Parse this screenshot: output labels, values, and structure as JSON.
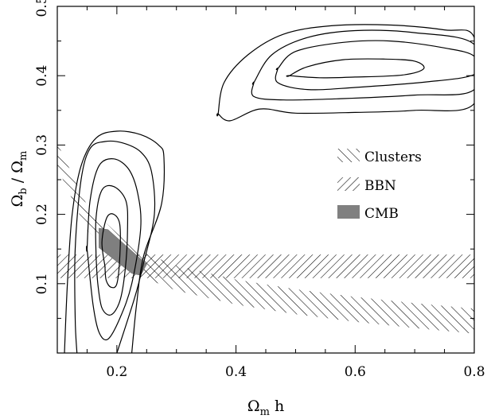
{
  "chart_data": {
    "type": "contour",
    "xlabel": {
      "main": "Ω",
      "sub": "m",
      "rest": " h"
    },
    "ylabel": {
      "main": "Ω",
      "sub1": "b",
      "mid": " / Ω",
      "sub2": "m"
    },
    "xlim": [
      0.1,
      0.8
    ],
    "ylim": [
      0.0,
      0.5
    ],
    "xticks": [
      0.2,
      0.4,
      0.6,
      0.8
    ],
    "xtick_labels": [
      "0.2",
      "0.4",
      "0.6",
      "0.8"
    ],
    "yticks": [
      0.1,
      0.2,
      0.3,
      0.4,
      0.5
    ],
    "ytick_labels": [
      "0.1",
      "0.2",
      "0.3",
      "0.4",
      "0.5"
    ],
    "grid": false,
    "legend": {
      "placement": "right-middle",
      "entries": [
        {
          "label": "Clusters",
          "style": "hatch-backslash"
        },
        {
          "label": "BBN",
          "style": "hatch-slash"
        },
        {
          "label": "CMB",
          "style": "solid-gray"
        }
      ]
    },
    "bands": {
      "clusters": {
        "center": [
          [
            0.1,
            0.285
          ],
          [
            0.15,
            0.195
          ],
          [
            0.2,
            0.155
          ],
          [
            0.25,
            0.125
          ],
          [
            0.3,
            0.108
          ],
          [
            0.4,
            0.088
          ],
          [
            0.5,
            0.074
          ],
          [
            0.6,
            0.063
          ],
          [
            0.7,
            0.054
          ],
          [
            0.8,
            0.046
          ]
        ],
        "halfwidth": 0.018
      },
      "bbn": {
        "ymin": 0.108,
        "ymax": 0.142
      },
      "cmb": {
        "polygon": [
          [
            0.17,
            0.18
          ],
          [
            0.185,
            0.178
          ],
          [
            0.25,
            0.128
          ],
          [
            0.24,
            0.112
          ],
          [
            0.225,
            0.115
          ],
          [
            0.17,
            0.152
          ]
        ]
      }
    },
    "contours_upper": [
      {
        "level": 1,
        "points": [
          [
            0.49,
            0.4
          ],
          [
            0.52,
            0.413
          ],
          [
            0.58,
            0.423
          ],
          [
            0.65,
            0.424
          ],
          [
            0.7,
            0.421
          ],
          [
            0.715,
            0.41
          ],
          [
            0.68,
            0.401
          ],
          [
            0.6,
            0.398
          ],
          [
            0.54,
            0.397
          ],
          [
            0.49,
            0.4
          ]
        ]
      },
      {
        "level": 2,
        "points": [
          [
            0.47,
            0.41
          ],
          [
            0.5,
            0.435
          ],
          [
            0.58,
            0.448
          ],
          [
            0.66,
            0.45
          ],
          [
            0.75,
            0.44
          ],
          [
            0.8,
            0.428
          ],
          [
            0.8,
            0.402
          ],
          [
            0.72,
            0.391
          ],
          [
            0.6,
            0.383
          ],
          [
            0.52,
            0.38
          ],
          [
            0.47,
            0.39
          ],
          [
            0.47,
            0.41
          ]
        ]
      },
      {
        "level": 3,
        "points": [
          [
            0.43,
            0.39
          ],
          [
            0.46,
            0.43
          ],
          [
            0.52,
            0.455
          ],
          [
            0.6,
            0.465
          ],
          [
            0.7,
            0.462
          ],
          [
            0.8,
            0.445
          ],
          [
            0.8,
            0.38
          ],
          [
            0.7,
            0.372
          ],
          [
            0.58,
            0.367
          ],
          [
            0.48,
            0.365
          ],
          [
            0.43,
            0.37
          ],
          [
            0.43,
            0.39
          ]
        ]
      },
      {
        "level": 4,
        "points": [
          [
            0.37,
            0.345
          ],
          [
            0.38,
            0.39
          ],
          [
            0.42,
            0.43
          ],
          [
            0.48,
            0.46
          ],
          [
            0.56,
            0.472
          ],
          [
            0.66,
            0.473
          ],
          [
            0.75,
            0.466
          ],
          [
            0.8,
            0.455
          ],
          [
            0.8,
            0.36
          ],
          [
            0.7,
            0.35
          ],
          [
            0.6,
            0.347
          ],
          [
            0.5,
            0.346
          ],
          [
            0.44,
            0.352
          ],
          [
            0.39,
            0.335
          ],
          [
            0.37,
            0.345
          ]
        ]
      }
    ],
    "contours_lower": [
      {
        "level": 1,
        "points": [
          [
            0.18,
            0.125
          ],
          [
            0.175,
            0.16
          ],
          [
            0.183,
            0.195
          ],
          [
            0.195,
            0.2
          ],
          [
            0.205,
            0.185
          ],
          [
            0.205,
            0.14
          ],
          [
            0.2,
            0.1
          ],
          [
            0.19,
            0.095
          ],
          [
            0.182,
            0.105
          ],
          [
            0.18,
            0.125
          ]
        ]
      },
      {
        "level": 2,
        "points": [
          [
            0.165,
            0.14
          ],
          [
            0.165,
            0.195
          ],
          [
            0.175,
            0.235
          ],
          [
            0.195,
            0.24
          ],
          [
            0.215,
            0.22
          ],
          [
            0.218,
            0.18
          ],
          [
            0.214,
            0.12
          ],
          [
            0.205,
            0.075
          ],
          [
            0.19,
            0.055
          ],
          [
            0.175,
            0.065
          ],
          [
            0.168,
            0.1
          ],
          [
            0.165,
            0.14
          ]
        ]
      },
      {
        "level": 3,
        "points": [
          [
            0.15,
            0.15
          ],
          [
            0.155,
            0.22
          ],
          [
            0.17,
            0.27
          ],
          [
            0.195,
            0.28
          ],
          [
            0.22,
            0.265
          ],
          [
            0.235,
            0.23
          ],
          [
            0.24,
            0.18
          ],
          [
            0.225,
            0.1
          ],
          [
            0.205,
            0.05
          ],
          [
            0.185,
            0.02
          ],
          [
            0.17,
            0.03
          ],
          [
            0.16,
            0.07
          ],
          [
            0.15,
            0.15
          ]
        ]
      },
      {
        "level": 4,
        "points": [
          [
            0.133,
            0.0
          ],
          [
            0.13,
            0.05
          ],
          [
            0.13,
            0.15
          ],
          [
            0.14,
            0.25
          ],
          [
            0.155,
            0.295
          ],
          [
            0.18,
            0.305
          ],
          [
            0.21,
            0.303
          ],
          [
            0.24,
            0.29
          ],
          [
            0.258,
            0.262
          ],
          [
            0.263,
            0.2
          ],
          [
            0.245,
            0.13
          ],
          [
            0.23,
            0.08
          ],
          [
            0.2,
            0.0
          ]
        ]
      },
      {
        "level": 5,
        "points": [
          [
            0.112,
            0.0
          ],
          [
            0.117,
            0.1
          ],
          [
            0.125,
            0.2
          ],
          [
            0.14,
            0.27
          ],
          [
            0.165,
            0.31
          ],
          [
            0.2,
            0.32
          ],
          [
            0.24,
            0.315
          ],
          [
            0.27,
            0.3
          ],
          [
            0.279,
            0.282
          ],
          [
            0.275,
            0.215
          ],
          [
            0.245,
            0.14
          ],
          [
            0.233,
            0.07
          ],
          [
            0.225,
            0.0
          ]
        ]
      }
    ]
  }
}
